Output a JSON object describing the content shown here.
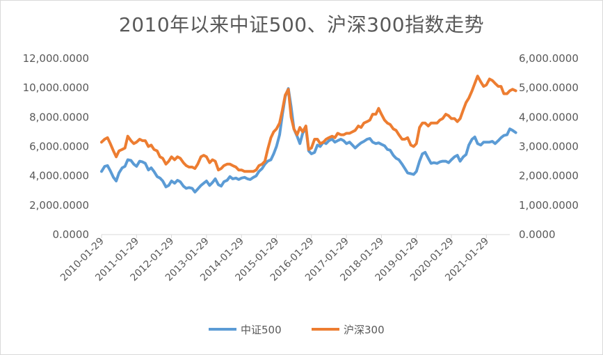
{
  "chart_data": {
    "type": "line",
    "title": "2010年以来中证500、沪深300指数走势",
    "xlabel": "",
    "ylabel": "",
    "y_left": {
      "ticks": [
        "0.0000",
        "2,000.0000",
        "4,000.0000",
        "6,000.0000",
        "8,000.0000",
        "10,000.0000",
        "12,000.0000"
      ],
      "ylim": [
        0,
        12000
      ]
    },
    "y_right": {
      "ticks": [
        "0.0000",
        "1,000.0000",
        "2,000.0000",
        "3,000.0000",
        "4,000.0000",
        "5,000.0000",
        "6,000.0000"
      ],
      "ylim": [
        0,
        6000
      ]
    },
    "x_ticks": [
      "2010-01-29",
      "2011-01-29",
      "2012-01-29",
      "2013-01-29",
      "2014-01-29",
      "2015-01-29",
      "2016-01-29",
      "2017-01-29",
      "2018-01-29",
      "2019-01-29",
      "2020-01-29",
      "2021-01-29"
    ],
    "x_start_year": 2010.08,
    "series": [
      {
        "name": "中证500",
        "axis": "left",
        "color": "#5b9bd5",
        "x": [
          2010.08,
          2010.17,
          2010.25,
          2010.33,
          2010.42,
          2010.5,
          2010.58,
          2010.67,
          2010.75,
          2010.83,
          2010.92,
          2011.0,
          2011.08,
          2011.17,
          2011.25,
          2011.33,
          2011.42,
          2011.5,
          2011.58,
          2011.67,
          2011.75,
          2011.83,
          2011.92,
          2012.0,
          2012.08,
          2012.17,
          2012.25,
          2012.33,
          2012.42,
          2012.5,
          2012.58,
          2012.67,
          2012.75,
          2012.83,
          2012.92,
          2013.0,
          2013.08,
          2013.17,
          2013.25,
          2013.33,
          2013.42,
          2013.5,
          2013.58,
          2013.67,
          2013.75,
          2013.83,
          2013.92,
          2014.0,
          2014.08,
          2014.17,
          2014.25,
          2014.33,
          2014.42,
          2014.5,
          2014.58,
          2014.67,
          2014.75,
          2014.83,
          2014.92,
          2015.0,
          2015.08,
          2015.17,
          2015.25,
          2015.33,
          2015.42,
          2015.5,
          2015.58,
          2015.67,
          2015.75,
          2015.83,
          2015.92,
          2016.0,
          2016.08,
          2016.17,
          2016.25,
          2016.33,
          2016.42,
          2016.5,
          2016.58,
          2016.67,
          2016.75,
          2016.83,
          2016.92,
          2017.0,
          2017.08,
          2017.17,
          2017.25,
          2017.33,
          2017.42,
          2017.5,
          2017.58,
          2017.67,
          2017.75,
          2017.83,
          2017.92,
          2018.0,
          2018.08,
          2018.17,
          2018.25,
          2018.33,
          2018.42,
          2018.5,
          2018.58,
          2018.67,
          2018.75,
          2018.83,
          2018.92,
          2019.0,
          2019.08,
          2019.17,
          2019.25,
          2019.33,
          2019.42,
          2019.5,
          2019.58,
          2019.67,
          2019.75,
          2019.83,
          2019.92,
          2020.0,
          2020.08,
          2020.17,
          2020.25,
          2020.33,
          2020.42,
          2020.5,
          2020.58,
          2020.67,
          2020.75,
          2020.83,
          2020.92,
          2021.0,
          2021.08,
          2021.17,
          2021.25,
          2021.33,
          2021.42,
          2021.5,
          2021.58,
          2021.67,
          2021.75,
          2021.83,
          2021.92
        ],
        "values": [
          4300,
          4650,
          4700,
          4350,
          3900,
          3650,
          4200,
          4550,
          4650,
          5100,
          5050,
          4800,
          4650,
          5000,
          4950,
          4850,
          4400,
          4550,
          4300,
          3950,
          3850,
          3650,
          3250,
          3350,
          3650,
          3500,
          3700,
          3600,
          3300,
          3150,
          3200,
          3150,
          2900,
          3100,
          3350,
          3500,
          3650,
          3350,
          3550,
          3800,
          3400,
          3300,
          3600,
          3700,
          3950,
          3800,
          3850,
          3750,
          3850,
          3900,
          3800,
          3750,
          3900,
          4000,
          4300,
          4500,
          4800,
          5000,
          5100,
          5500,
          6000,
          6800,
          8200,
          9400,
          9950,
          8700,
          7200,
          6700,
          6200,
          6900,
          7300,
          5700,
          5500,
          5600,
          6100,
          6000,
          6300,
          6200,
          6400,
          6500,
          6300,
          6400,
          6500,
          6400,
          6200,
          6300,
          6100,
          5900,
          6100,
          6250,
          6350,
          6500,
          6550,
          6300,
          6200,
          6250,
          6150,
          6050,
          5800,
          5750,
          5400,
          5200,
          5100,
          4800,
          4500,
          4200,
          4150,
          4100,
          4300,
          5000,
          5500,
          5600,
          5200,
          4850,
          4900,
          4850,
          4950,
          5000,
          5000,
          4900,
          5100,
          5300,
          5400,
          5000,
          5300,
          5450,
          6100,
          6500,
          6650,
          6200,
          6100,
          6300,
          6300,
          6300,
          6350,
          6200,
          6400,
          6600,
          6750,
          6800,
          7200,
          7100,
          6950
        ]
      },
      {
        "name": "沪深300",
        "axis": "right",
        "color": "#ed7d31",
        "x": [
          2010.08,
          2010.17,
          2010.25,
          2010.33,
          2010.42,
          2010.5,
          2010.58,
          2010.67,
          2010.75,
          2010.83,
          2010.92,
          2011.0,
          2011.08,
          2011.17,
          2011.25,
          2011.33,
          2011.42,
          2011.5,
          2011.58,
          2011.67,
          2011.75,
          2011.83,
          2011.92,
          2012.0,
          2012.08,
          2012.17,
          2012.25,
          2012.33,
          2012.42,
          2012.5,
          2012.58,
          2012.67,
          2012.75,
          2012.83,
          2012.92,
          2013.0,
          2013.08,
          2013.17,
          2013.25,
          2013.33,
          2013.42,
          2013.5,
          2013.58,
          2013.67,
          2013.75,
          2013.83,
          2013.92,
          2014.0,
          2014.08,
          2014.17,
          2014.25,
          2014.33,
          2014.42,
          2014.5,
          2014.58,
          2014.67,
          2014.75,
          2014.83,
          2014.92,
          2015.0,
          2015.08,
          2015.17,
          2015.25,
          2015.33,
          2015.42,
          2015.5,
          2015.58,
          2015.67,
          2015.75,
          2015.83,
          2015.92,
          2016.0,
          2016.08,
          2016.17,
          2016.25,
          2016.33,
          2016.42,
          2016.5,
          2016.58,
          2016.67,
          2016.75,
          2016.83,
          2016.92,
          2017.0,
          2017.08,
          2017.17,
          2017.25,
          2017.33,
          2017.42,
          2017.5,
          2017.58,
          2017.67,
          2017.75,
          2017.83,
          2017.92,
          2018.0,
          2018.08,
          2018.17,
          2018.25,
          2018.33,
          2018.42,
          2018.5,
          2018.58,
          2018.67,
          2018.75,
          2018.83,
          2018.92,
          2019.0,
          2019.08,
          2019.17,
          2019.25,
          2019.33,
          2019.42,
          2019.5,
          2019.58,
          2019.67,
          2019.75,
          2019.83,
          2019.92,
          2020.0,
          2020.08,
          2020.17,
          2020.25,
          2020.33,
          2020.42,
          2020.5,
          2020.58,
          2020.67,
          2020.75,
          2020.83,
          2020.92,
          2021.0,
          2021.08,
          2021.17,
          2021.25,
          2021.33,
          2021.42,
          2021.5,
          2021.58,
          2021.67,
          2021.75,
          2021.83,
          2021.92
        ],
        "values": [
          3150,
          3250,
          3300,
          3100,
          2850,
          2650,
          2850,
          2900,
          2950,
          3350,
          3200,
          3100,
          3150,
          3250,
          3200,
          3200,
          3000,
          3050,
          2900,
          2850,
          2650,
          2600,
          2400,
          2500,
          2650,
          2550,
          2650,
          2600,
          2450,
          2350,
          2300,
          2300,
          2250,
          2400,
          2650,
          2700,
          2650,
          2450,
          2550,
          2500,
          2200,
          2250,
          2350,
          2400,
          2400,
          2350,
          2300,
          2200,
          2200,
          2150,
          2150,
          2150,
          2150,
          2200,
          2350,
          2400,
          2500,
          2900,
          3300,
          3500,
          3600,
          3800,
          4250,
          4750,
          4950,
          4000,
          3600,
          3400,
          3650,
          3500,
          3700,
          2900,
          2950,
          3250,
          3250,
          3100,
          3150,
          3250,
          3300,
          3350,
          3300,
          3450,
          3400,
          3400,
          3450,
          3450,
          3500,
          3550,
          3700,
          3650,
          3800,
          3850,
          3900,
          4100,
          4100,
          4300,
          4100,
          3900,
          3800,
          3750,
          3600,
          3550,
          3400,
          3250,
          3250,
          3300,
          3050,
          3000,
          3100,
          3650,
          3800,
          3800,
          3700,
          3800,
          3800,
          3800,
          3900,
          3950,
          4100,
          4050,
          3950,
          3950,
          3850,
          3950,
          4250,
          4500,
          4650,
          4900,
          5150,
          5400,
          5200,
          5050,
          5100,
          5300,
          5250,
          5150,
          5050,
          5050,
          4800,
          4800,
          4900,
          4950,
          4900
        ]
      }
    ],
    "legend": {
      "position": "bottom",
      "labels": [
        "中证500",
        "沪深300"
      ]
    }
  }
}
